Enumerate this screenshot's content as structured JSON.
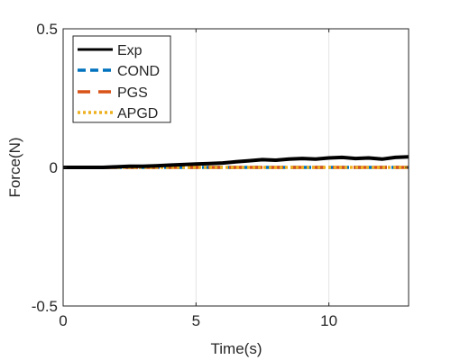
{
  "chart_data": {
    "type": "line",
    "title": "",
    "xlabel": "Time(s)",
    "ylabel": "Force(N)",
    "xlim": [
      0,
      13
    ],
    "ylim": [
      -0.5,
      0.5
    ],
    "xticks": [
      0,
      5,
      10
    ],
    "yticks": [
      -0.5,
      0,
      0.5
    ],
    "xtick_labels": [
      "0",
      "5",
      "10"
    ],
    "ytick_labels": [
      "-0.5",
      "0",
      "0.5"
    ],
    "grid": "vertical",
    "legend_position": "top-left",
    "series": [
      {
        "name": "Exp",
        "color": "#000000",
        "style": "solid",
        "x": [
          0,
          0.5,
          1,
          1.5,
          2,
          2.5,
          3,
          3.5,
          4,
          4.5,
          5,
          5.5,
          6,
          6.5,
          7,
          7.5,
          8,
          8.5,
          9,
          9.5,
          10,
          10.5,
          11,
          11.5,
          12,
          12.5,
          13
        ],
        "y": [
          0.0,
          0.0,
          0.0,
          0.0,
          0.002,
          0.004,
          0.004,
          0.006,
          0.008,
          0.01,
          0.012,
          0.014,
          0.016,
          0.02,
          0.024,
          0.028,
          0.026,
          0.03,
          0.032,
          0.03,
          0.034,
          0.036,
          0.032,
          0.034,
          0.03,
          0.036,
          0.038
        ]
      },
      {
        "name": "COND",
        "color": "#0072BD",
        "style": "dashed",
        "x": [
          0,
          13
        ],
        "y": [
          0,
          0
        ]
      },
      {
        "name": "PGS",
        "color": "#D95319",
        "style": "longdash",
        "x": [
          0,
          13
        ],
        "y": [
          0,
          0
        ]
      },
      {
        "name": "APGD",
        "color": "#EDB120",
        "style": "dotted",
        "x": [
          0,
          13
        ],
        "y": [
          0,
          0
        ]
      }
    ]
  }
}
